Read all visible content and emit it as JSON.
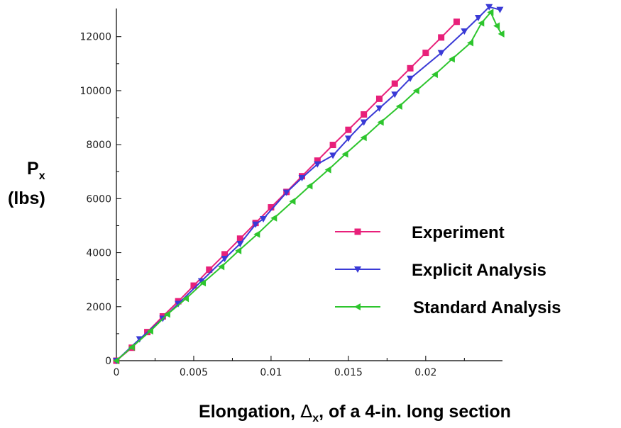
{
  "chart_data": {
    "type": "line",
    "xlabel": {
      "before": "Elongation, ",
      "symbol": "Δ",
      "sub": "x",
      "after": ", of a 4-in. long section"
    },
    "ylabel": {
      "symbol": "P",
      "sub": "x",
      "line2": "(lbs)"
    },
    "xlim": [
      0,
      0.025
    ],
    "ylim": [
      0,
      13200
    ],
    "x_ticks": [
      {
        "v": 0,
        "label": "0"
      },
      {
        "v": 0.005,
        "label": "0.005"
      },
      {
        "v": 0.01,
        "label": "0.01"
      },
      {
        "v": 0.015,
        "label": "0.015"
      },
      {
        "v": 0.02,
        "label": "0.02"
      }
    ],
    "y_ticks": [
      {
        "v": 0,
        "label": "0"
      },
      {
        "v": 2000,
        "label": "2000"
      },
      {
        "v": 4000,
        "label": "4000"
      },
      {
        "v": 6000,
        "label": "6000"
      },
      {
        "v": 8000,
        "label": "8000"
      },
      {
        "v": 10000,
        "label": "10000"
      },
      {
        "v": 12000,
        "label": "12000"
      }
    ],
    "legend_position": "lower-right",
    "series": [
      {
        "name": "Experiment",
        "color": "#e8207a",
        "marker": "square",
        "points": [
          [
            0,
            0
          ],
          [
            0.001,
            480
          ],
          [
            0.002,
            1060
          ],
          [
            0.003,
            1640
          ],
          [
            0.004,
            2200
          ],
          [
            0.005,
            2780
          ],
          [
            0.006,
            3370
          ],
          [
            0.007,
            3940
          ],
          [
            0.008,
            4520
          ],
          [
            0.009,
            5100
          ],
          [
            0.01,
            5680
          ],
          [
            0.011,
            6250
          ],
          [
            0.012,
            6830
          ],
          [
            0.013,
            7410
          ],
          [
            0.014,
            7990
          ],
          [
            0.015,
            8550
          ],
          [
            0.016,
            9120
          ],
          [
            0.017,
            9700
          ],
          [
            0.018,
            10260
          ],
          [
            0.019,
            10830
          ],
          [
            0.02,
            11400
          ],
          [
            0.021,
            11970
          ],
          [
            0.022,
            12550
          ]
        ]
      },
      {
        "name": "Explicit Analysis",
        "color": "#3a3ad6",
        "marker": "triangle-down",
        "points": [
          [
            0,
            0
          ],
          [
            0.0015,
            800
          ],
          [
            0.003,
            1560
          ],
          [
            0.004,
            2110
          ],
          [
            0.0055,
            2950
          ],
          [
            0.007,
            3780
          ],
          [
            0.008,
            4330
          ],
          [
            0.009,
            5050
          ],
          [
            0.0095,
            5250
          ],
          [
            0.011,
            6230
          ],
          [
            0.012,
            6770
          ],
          [
            0.013,
            7280
          ],
          [
            0.014,
            7600
          ],
          [
            0.015,
            8230
          ],
          [
            0.016,
            8830
          ],
          [
            0.017,
            9350
          ],
          [
            0.018,
            9860
          ],
          [
            0.019,
            10450
          ],
          [
            0.021,
            11400
          ],
          [
            0.0225,
            12200
          ],
          [
            0.0234,
            12700
          ],
          [
            0.0241,
            13100
          ],
          [
            0.0248,
            13000
          ]
        ]
      },
      {
        "name": "Standard Analysis",
        "color": "#2dc52d",
        "marker": "triangle-left",
        "points": [
          [
            0,
            0
          ],
          [
            0.001,
            500
          ],
          [
            0.0022,
            1100
          ],
          [
            0.0033,
            1720
          ],
          [
            0.0045,
            2300
          ],
          [
            0.0056,
            2880
          ],
          [
            0.0068,
            3480
          ],
          [
            0.0079,
            4070
          ],
          [
            0.0091,
            4680
          ],
          [
            0.0102,
            5280
          ],
          [
            0.0114,
            5900
          ],
          [
            0.0125,
            6470
          ],
          [
            0.0137,
            7070
          ],
          [
            0.0148,
            7650
          ],
          [
            0.016,
            8260
          ],
          [
            0.0171,
            8830
          ],
          [
            0.0183,
            9420
          ],
          [
            0.0194,
            10000
          ],
          [
            0.0206,
            10600
          ],
          [
            0.0217,
            11170
          ],
          [
            0.0229,
            11770
          ],
          [
            0.0236,
            12500
          ],
          [
            0.0242,
            12900
          ],
          [
            0.0246,
            12400
          ],
          [
            0.0249,
            12100
          ]
        ]
      }
    ]
  }
}
